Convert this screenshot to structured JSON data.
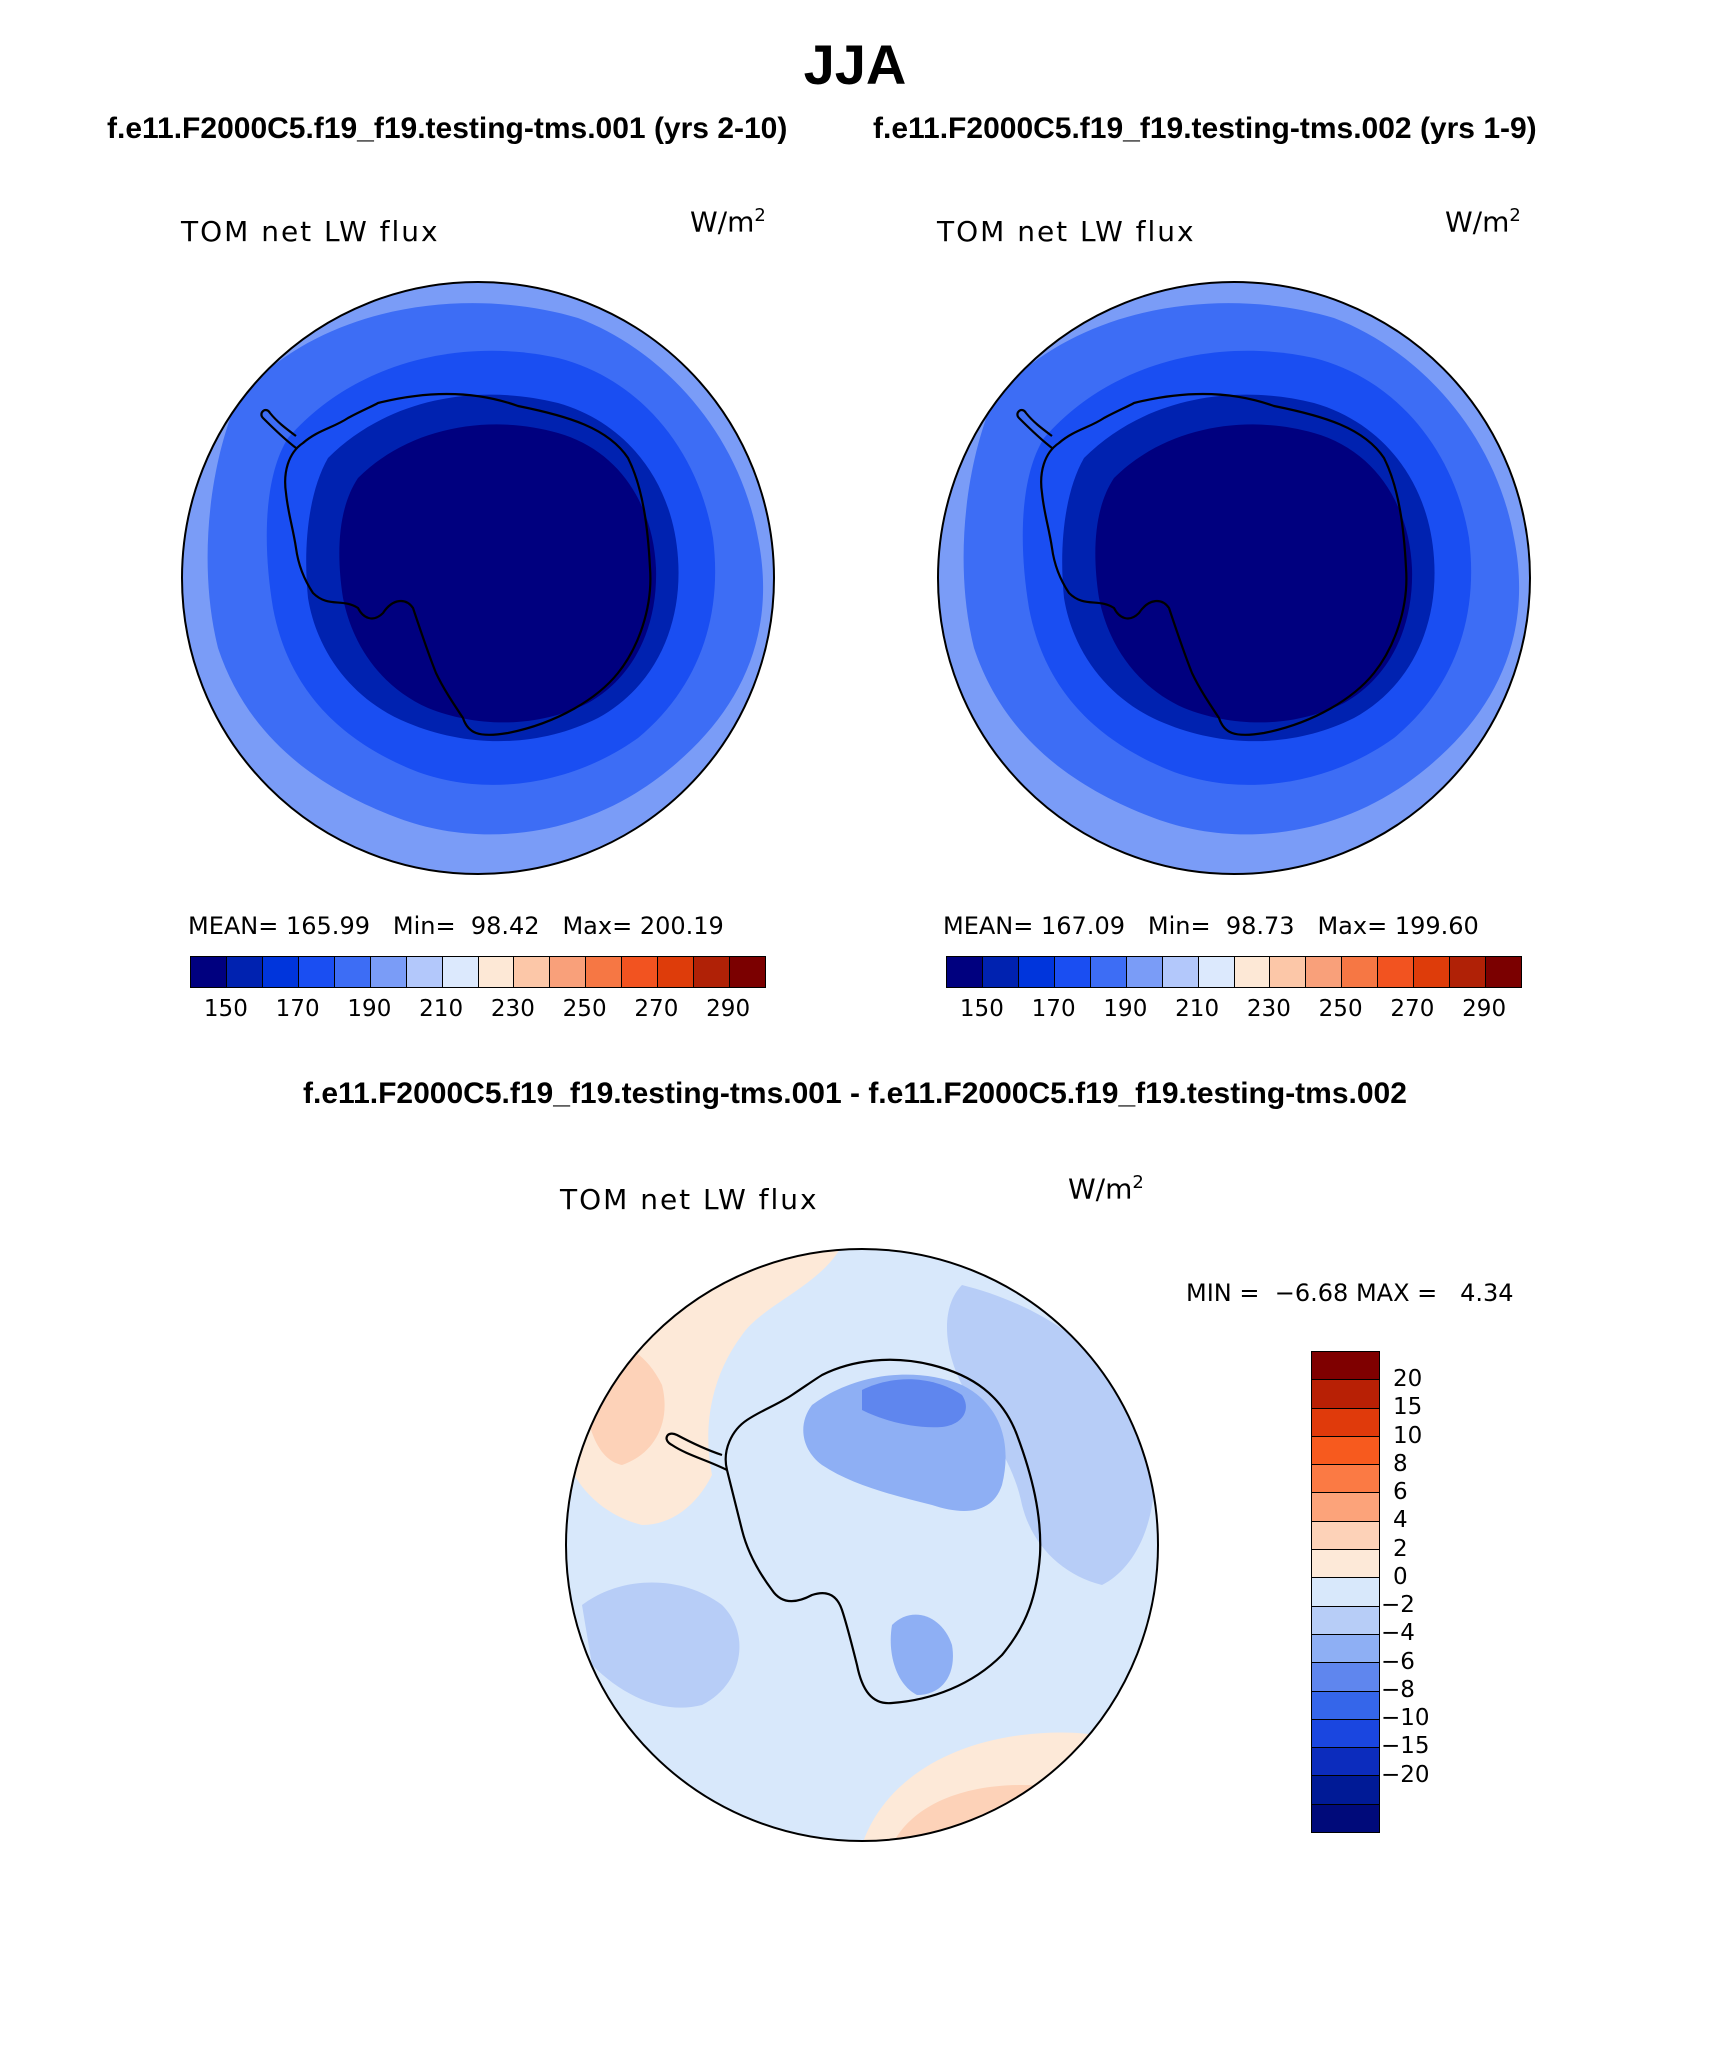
{
  "title": "JJA",
  "panels": [
    {
      "case": "f.e11.F2000C5.f19_f19.testing-tms.001 (yrs 2-10)",
      "label": "TOM net LW flux",
      "units": "W/m",
      "units_exp": "2",
      "mean_label": "MEAN=",
      "mean": "165.99",
      "min_label": "Min=",
      "min": "98.42",
      "max_label": "Max=",
      "max": "200.19"
    },
    {
      "case": "f.e11.F2000C5.f19_f19.testing-tms.002 (yrs 1-9)",
      "label": "TOM net LW flux",
      "units": "W/m",
      "units_exp": "2",
      "mean_label": "MEAN=",
      "mean": "167.09",
      "min_label": "Min=",
      "min": "98.73",
      "max_label": "Max=",
      "max": "199.60"
    }
  ],
  "abs_colorbar": {
    "colors": [
      "#00007f",
      "#0022b0",
      "#0035dc",
      "#1a4ef2",
      "#3d6df5",
      "#7a9cf7",
      "#b3c8fb",
      "#dce9fd",
      "#fde8d6",
      "#fcc7a8",
      "#f9a07a",
      "#f67744",
      "#f25320",
      "#de3c0a",
      "#b02106",
      "#7b0000"
    ],
    "tick_labels": [
      "150",
      "170",
      "190",
      "210",
      "230",
      "250",
      "270",
      "290"
    ]
  },
  "difference": {
    "title": "f.e11.F2000C5.f19_f19.testing-tms.001 - f.e11.F2000C5.f19_f19.testing-tms.002",
    "label": "TOM net LW flux",
    "units": "W/m",
    "units_exp": "2",
    "min_label": "MIN =",
    "min": "−6.68",
    "max_label": "MAX =",
    "max": "4.34"
  },
  "diff_colorbar": {
    "colors": [
      "#7f0000",
      "#b82005",
      "#e03a0b",
      "#f75a1e",
      "#fb7a44",
      "#fca37a",
      "#fdd2b8",
      "#fde9d8",
      "#d8e8fb",
      "#b7cdf7",
      "#8eaff4",
      "#5f86ee",
      "#3566ea",
      "#1a46e0",
      "#0c2cbd",
      "#001a96",
      "#000a7a"
    ],
    "tick_labels": [
      "20",
      "15",
      "10",
      "8",
      "6",
      "4",
      "2",
      "0",
      "−2",
      "−4",
      "−6",
      "−8",
      "−10",
      "−15",
      "−20"
    ]
  },
  "map_colors": {
    "abs_fill": [
      "#00007f",
      "#0022b0",
      "#1a4ef2",
      "#3d6df5",
      "#7a9cf7"
    ],
    "diff_base": "#d8e8fb",
    "diff_blue_light": "#b7cdf7",
    "diff_blue_mid": "#8eaff4",
    "diff_blue_dark": "#5f86ee",
    "diff_orange": "#fde9d8",
    "diff_orange_mid": "#fdd2b8",
    "diff_orange_dark": "#fca37a"
  }
}
